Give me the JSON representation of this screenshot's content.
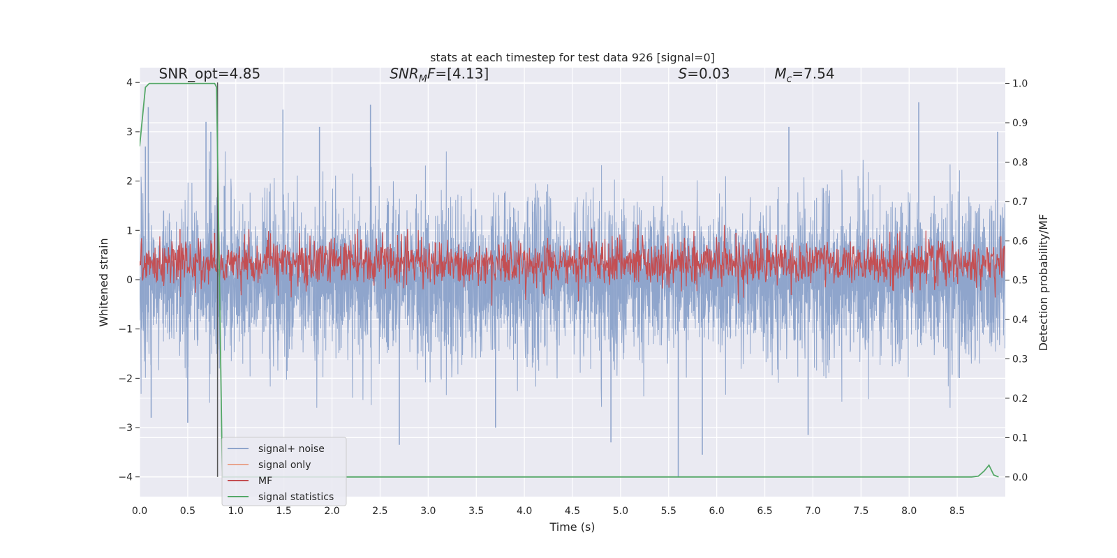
{
  "chart_data": {
    "type": "line",
    "title": "stats at each timestep for test data 926 [signal=0]",
    "xlabel": "Time (s)",
    "ylabel_left": "Whitened strain",
    "ylabel_right": "Detection probability/MF",
    "xlim": [
      0,
      9.0
    ],
    "ylim_left": [
      -4.4,
      4.3
    ],
    "ylim_right": [
      -0.05,
      1.04
    ],
    "x_ticks": [
      "0.0",
      "0.5",
      "1.0",
      "1.5",
      "2.0",
      "2.5",
      "3.0",
      "3.5",
      "4.0",
      "4.5",
      "5.0",
      "5.5",
      "6.0",
      "6.5",
      "7.0",
      "7.5",
      "8.0",
      "8.5"
    ],
    "y_ticks_left": [
      "4",
      "3",
      "2",
      "1",
      "0",
      "−1",
      "−2",
      "−3",
      "−4"
    ],
    "y_ticks_right": [
      "1.0",
      "0.9",
      "0.8",
      "0.7",
      "0.6",
      "0.5",
      "0.4",
      "0.3",
      "0.2",
      "0.1",
      "0.0"
    ],
    "grid": true,
    "legend_position": "lower-left",
    "annotations": [
      {
        "text": "SNR_opt=4.85",
        "x": 0.2,
        "y": 4.05
      },
      {
        "text": "SNR_MF=[4.13]",
        "x": 2.6,
        "y": 4.05
      },
      {
        "text": "S=0.03",
        "x": 5.6,
        "y": 4.05
      },
      {
        "text": "M_c=7.54",
        "x": 6.6,
        "y": 4.05
      }
    ],
    "vline": {
      "x": 0.81,
      "y_range": [
        -4.0,
        4.0
      ],
      "color": "#555555"
    },
    "series": [
      {
        "name": "signal+ noise",
        "axis": "left",
        "color": "#8fa5cc",
        "kind": "noise",
        "baseline": 0.0,
        "typical_range": [
          -1.6,
          1.6
        ],
        "peaks": [
          {
            "x": 0.06,
            "y": 2.7
          },
          {
            "x": 0.09,
            "y": 3.5
          },
          {
            "x": 0.12,
            "y": -2.8
          },
          {
            "x": 0.5,
            "y": -2.9
          },
          {
            "x": 0.69,
            "y": 3.2
          },
          {
            "x": 0.74,
            "y": 3.0
          },
          {
            "x": 0.88,
            "y": 1.9
          },
          {
            "x": 1.49,
            "y": 3.45
          },
          {
            "x": 1.87,
            "y": 3.1
          },
          {
            "x": 2.4,
            "y": 3.55
          },
          {
            "x": 2.7,
            "y": -3.35
          },
          {
            "x": 3.7,
            "y": -3.0
          },
          {
            "x": 4.9,
            "y": -3.3
          },
          {
            "x": 5.6,
            "y": -4.0
          },
          {
            "x": 5.85,
            "y": -3.55
          },
          {
            "x": 6.75,
            "y": 3.1
          },
          {
            "x": 6.95,
            "y": -3.15
          },
          {
            "x": 8.1,
            "y": 3.6
          },
          {
            "x": 8.92,
            "y": 3.0
          }
        ]
      },
      {
        "name": "signal only",
        "axis": "left",
        "color": "#e8a58e",
        "kind": "flat",
        "values": []
      },
      {
        "name": "MF",
        "axis": "right",
        "color": "#c44e52",
        "kind": "noise",
        "baseline": 0.545,
        "typical_range": [
          0.5,
          0.6
        ],
        "peaks": [
          {
            "x": 0.42,
            "y": 0.63
          },
          {
            "x": 0.78,
            "y": 0.62
          },
          {
            "x": 4.7,
            "y": 0.63
          },
          {
            "x": 6.2,
            "y": 0.62
          }
        ]
      },
      {
        "name": "signal statistics",
        "axis": "right",
        "color": "#55a868",
        "kind": "line",
        "x": [
          0.0,
          0.06,
          0.1,
          0.78,
          0.8,
          0.83,
          0.86,
          0.9,
          8.65,
          8.72,
          8.78,
          8.83,
          8.88,
          8.93
        ],
        "y": [
          0.84,
          0.99,
          1.0,
          1.0,
          0.99,
          0.5,
          0.0,
          0.0,
          0.0,
          0.002,
          0.015,
          0.03,
          0.005,
          0.0
        ]
      }
    ]
  }
}
